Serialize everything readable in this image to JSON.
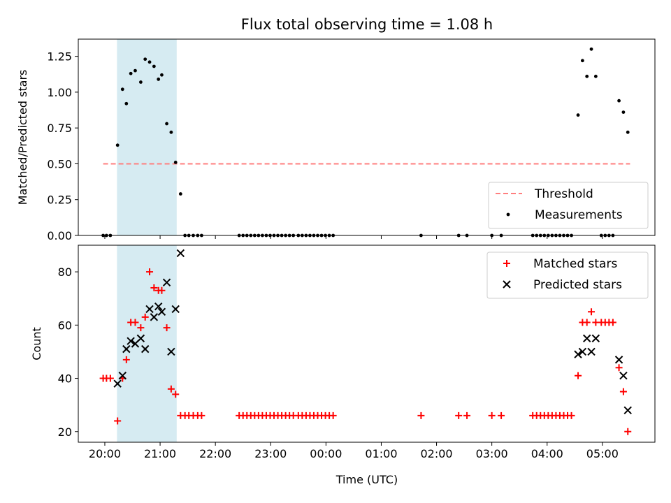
{
  "title": "Flux total observing time = 1.08 h",
  "colors": {
    "threshold": "#ff7f7f",
    "shade": "#add8e6",
    "matched": "#ff0000",
    "predicted": "#000000",
    "measurement": "#000000"
  },
  "x_axis": {
    "label": "Time (UTC)",
    "ticks": [
      {
        "value": 0,
        "label": "20:00"
      },
      {
        "value": 1,
        "label": "21:00"
      },
      {
        "value": 2,
        "label": "22:00"
      },
      {
        "value": 3,
        "label": "23:00"
      },
      {
        "value": 4,
        "label": "00:00"
      },
      {
        "value": 5,
        "label": "01:00"
      },
      {
        "value": 6,
        "label": "02:00"
      },
      {
        "value": 7,
        "label": "03:00"
      },
      {
        "value": 8,
        "label": "04:00"
      },
      {
        "value": 9,
        "label": "05:00"
      }
    ]
  },
  "chart_data": [
    {
      "type": "scatter",
      "title": "Flux total observing time = 1.08 h",
      "xlabel": "",
      "ylabel": "Matched/Predicted stars",
      "xlim": [
        -0.48,
        9.95
      ],
      "ylim": [
        0,
        1.37
      ],
      "yticks": [
        0.0,
        0.25,
        0.5,
        0.75,
        1.0,
        1.25
      ],
      "ytick_labels": [
        "0.00",
        "0.25",
        "0.50",
        "0.75",
        "1.00",
        "1.25"
      ],
      "shaded_span": [
        0.22,
        1.3
      ],
      "legend_position": "lower-right",
      "threshold": {
        "name": "Threshold",
        "value": 0.5,
        "x_range": [
          -0.03,
          9.5
        ]
      },
      "series": [
        {
          "name": "Measurements",
          "x": [
            -0.03,
            0.03,
            0.1,
            0.23,
            0.32,
            0.39,
            0.47,
            0.55,
            0.65,
            0.73,
            0.81,
            0.89,
            0.97,
            1.03,
            1.12,
            1.2,
            1.28,
            1.37,
            1.45,
            1.52,
            1.6,
            1.68,
            1.75,
            2.43,
            2.5,
            2.57,
            2.64,
            2.71,
            2.78,
            2.85,
            2.92,
            2.99,
            3.06,
            3.13,
            3.2,
            3.27,
            3.34,
            3.41,
            3.5,
            3.57,
            3.64,
            3.71,
            3.78,
            3.85,
            3.92,
            3.99,
            4.06,
            4.13,
            5.72,
            6.4,
            6.55,
            7.0,
            7.17,
            7.74,
            7.81,
            7.88,
            7.95,
            8.02,
            8.09,
            8.16,
            8.23,
            8.3,
            8.37,
            8.44,
            8.56,
            8.64,
            8.72,
            8.8,
            8.88,
            8.98,
            9.05,
            9.12,
            9.19,
            9.3,
            9.38,
            9.46
          ],
          "y": [
            0,
            0,
            0,
            0.63,
            1.02,
            0.92,
            1.13,
            1.15,
            1.07,
            1.23,
            1.21,
            1.18,
            1.09,
            1.12,
            0.78,
            0.72,
            0.51,
            0.29,
            0,
            0,
            0,
            0,
            0,
            0,
            0,
            0,
            0,
            0,
            0,
            0,
            0,
            0,
            0,
            0,
            0,
            0,
            0,
            0,
            0,
            0,
            0,
            0,
            0,
            0,
            0,
            0,
            0,
            0,
            0,
            0,
            0,
            0,
            0,
            0,
            0,
            0,
            0,
            0,
            0,
            0,
            0,
            0,
            0,
            0,
            0.84,
            1.22,
            1.11,
            1.3,
            1.11,
            0,
            0,
            0,
            0,
            0.94,
            0.86,
            0.72
          ]
        }
      ]
    },
    {
      "type": "scatter",
      "xlabel": "Time (UTC)",
      "ylabel": "Count",
      "xlim": [
        -0.48,
        9.95
      ],
      "ylim": [
        16,
        90
      ],
      "yticks": [
        20,
        40,
        60,
        80
      ],
      "ytick_labels": [
        "20",
        "40",
        "60",
        "80"
      ],
      "shaded_span": [
        0.22,
        1.3
      ],
      "legend_position": "upper-right",
      "series": [
        {
          "name": "Matched stars",
          "marker": "+",
          "x": [
            -0.03,
            0.03,
            0.1,
            0.23,
            0.32,
            0.39,
            0.47,
            0.55,
            0.65,
            0.73,
            0.81,
            0.89,
            0.97,
            1.03,
            1.12,
            1.2,
            1.28,
            1.37,
            1.45,
            1.52,
            1.6,
            1.68,
            1.75,
            2.43,
            2.5,
            2.57,
            2.64,
            2.71,
            2.78,
            2.85,
            2.92,
            2.99,
            3.06,
            3.13,
            3.2,
            3.27,
            3.34,
            3.41,
            3.5,
            3.57,
            3.64,
            3.71,
            3.78,
            3.85,
            3.92,
            3.99,
            4.06,
            4.13,
            5.72,
            6.4,
            6.55,
            7.0,
            7.17,
            7.74,
            7.81,
            7.88,
            7.95,
            8.02,
            8.09,
            8.16,
            8.23,
            8.3,
            8.37,
            8.44,
            8.56,
            8.64,
            8.72,
            8.8,
            8.88,
            8.98,
            9.05,
            9.12,
            9.19,
            9.3,
            9.38,
            9.46
          ],
          "y": [
            40,
            40,
            40,
            24,
            40,
            47,
            61,
            61,
            59,
            63,
            80,
            74,
            73,
            73,
            59,
            36,
            34,
            26,
            26,
            26,
            26,
            26,
            26,
            26,
            26,
            26,
            26,
            26,
            26,
            26,
            26,
            26,
            26,
            26,
            26,
            26,
            26,
            26,
            26,
            26,
            26,
            26,
            26,
            26,
            26,
            26,
            26,
            26,
            26,
            26,
            26,
            26,
            26,
            26,
            26,
            26,
            26,
            26,
            26,
            26,
            26,
            26,
            26,
            26,
            41,
            61,
            61,
            65,
            61,
            61,
            61,
            61,
            61,
            44,
            35,
            20
          ]
        },
        {
          "name": "Predicted stars",
          "marker": "x",
          "x": [
            0.23,
            0.32,
            0.39,
            0.47,
            0.55,
            0.65,
            0.73,
            0.81,
            0.89,
            0.97,
            1.03,
            1.12,
            1.2,
            1.28,
            1.37,
            8.56,
            8.64,
            8.72,
            8.8,
            8.88,
            9.3,
            9.38,
            9.46
          ],
          "y": [
            38,
            41,
            51,
            54,
            53,
            55,
            51,
            66,
            63,
            67,
            65,
            76,
            50,
            66,
            87,
            49,
            50,
            55,
            50,
            55,
            47,
            41,
            28
          ]
        }
      ]
    }
  ]
}
